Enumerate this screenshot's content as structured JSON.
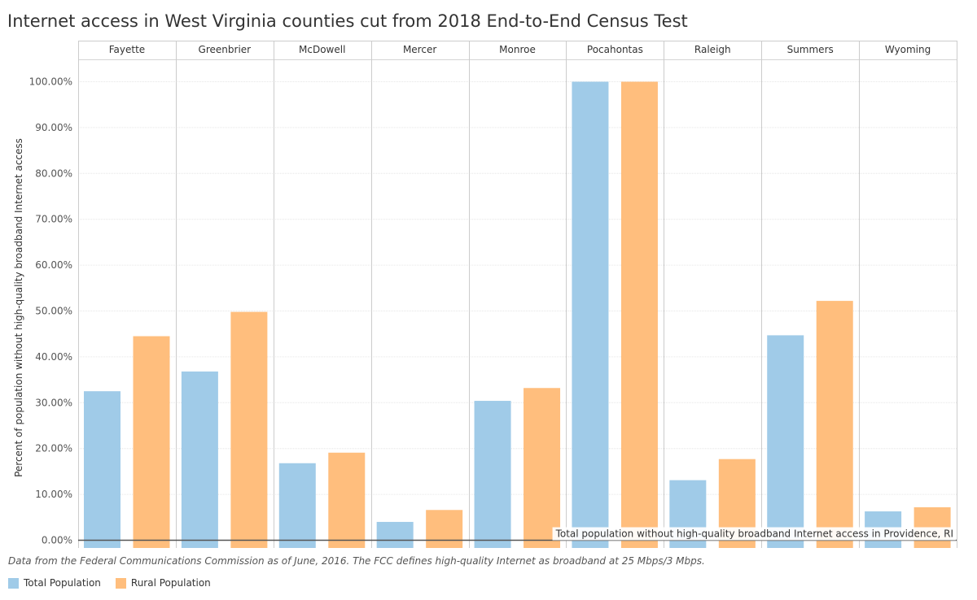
{
  "title": "Internet access in West Virginia counties cut from 2018 End-to-End Census Test",
  "footnote": "Data from the Federal Communications Commission as of June, 2016. The FCC defines high-quality Internet as broadband at 25 Mbps/3 Mbps.",
  "colors": {
    "total": "#a0cbe8",
    "rural": "#ffbe7d",
    "refline": "#555555",
    "grid": "#e6e6e6"
  },
  "chart_data": {
    "type": "bar",
    "categories": [
      "Fayette",
      "Greenbrier",
      "McDowell",
      "Mercer",
      "Monroe",
      "Pocahontas",
      "Raleigh",
      "Summers",
      "Wyoming"
    ],
    "series": [
      {
        "name": "Total Population",
        "values": [
          32.5,
          36.8,
          16.8,
          4.0,
          30.4,
          100.0,
          13.1,
          44.7,
          6.3
        ]
      },
      {
        "name": "Rural Population",
        "values": [
          44.5,
          49.8,
          19.1,
          6.6,
          33.2,
          100.0,
          17.7,
          52.2,
          7.2
        ]
      }
    ],
    "ylabel": "Percent of population without high-quality broadband Internet access",
    "ylim": [
      0,
      100
    ],
    "yticks": [
      "0.00%",
      "10.00%",
      "20.00%",
      "30.00%",
      "40.00%",
      "50.00%",
      "60.00%",
      "70.00%",
      "80.00%",
      "90.00%",
      "100.00%"
    ],
    "reference_line": {
      "value": 0,
      "label": "Total population without high-quality broadband Internet access in Providence, RI"
    },
    "grid": true,
    "legend_position": "bottom-left"
  }
}
